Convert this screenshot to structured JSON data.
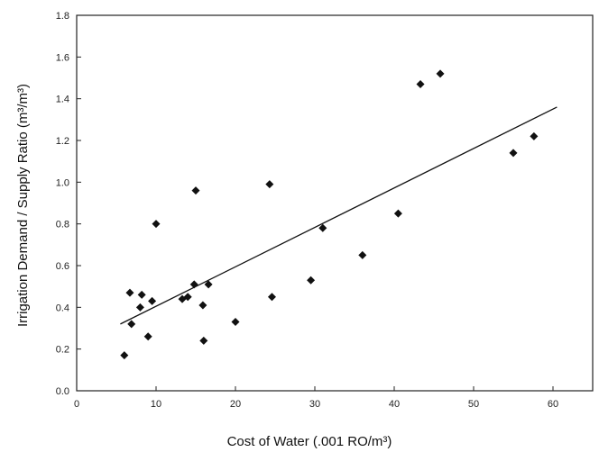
{
  "chart_data": {
    "type": "scatter",
    "title": "",
    "xlabel": "Cost of Water (.001 RO/m³)",
    "ylabel": "Irrigation Demand / Supply Ratio (m³/m³)",
    "xlim": [
      0,
      65
    ],
    "ylim": [
      0,
      1.8
    ],
    "xticks": [
      0,
      10,
      20,
      30,
      40,
      50,
      60
    ],
    "yticks": [
      0.0,
      0.2,
      0.4,
      0.6,
      0.8,
      1.0,
      1.2,
      1.4,
      1.6,
      1.8
    ],
    "xtick_labels": [
      "0",
      "10",
      "20",
      "30",
      "40",
      "50",
      "60"
    ],
    "ytick_labels": [
      "0.0",
      "0.2",
      "0.4",
      "0.6",
      "0.8",
      "1.0",
      "1.2",
      "1.4",
      "1.6",
      "1.8"
    ],
    "grid": false,
    "series": [
      {
        "points": [
          {
            "x": 6.0,
            "y": 0.17
          },
          {
            "x": 6.7,
            "y": 0.47
          },
          {
            "x": 6.9,
            "y": 0.32
          },
          {
            "x": 8.0,
            "y": 0.4
          },
          {
            "x": 8.2,
            "y": 0.46
          },
          {
            "x": 9.0,
            "y": 0.26
          },
          {
            "x": 9.5,
            "y": 0.43
          },
          {
            "x": 10.0,
            "y": 0.8
          },
          {
            "x": 13.3,
            "y": 0.44
          },
          {
            "x": 14.0,
            "y": 0.45
          },
          {
            "x": 14.8,
            "y": 0.51
          },
          {
            "x": 15.0,
            "y": 0.96
          },
          {
            "x": 15.9,
            "y": 0.41
          },
          {
            "x": 16.0,
            "y": 0.24
          },
          {
            "x": 16.6,
            "y": 0.51
          },
          {
            "x": 20.0,
            "y": 0.33
          },
          {
            "x": 24.3,
            "y": 0.99
          },
          {
            "x": 24.6,
            "y": 0.45
          },
          {
            "x": 29.5,
            "y": 0.53
          },
          {
            "x": 31.0,
            "y": 0.78
          },
          {
            "x": 36.0,
            "y": 0.65
          },
          {
            "x": 40.5,
            "y": 0.85
          },
          {
            "x": 43.3,
            "y": 1.47
          },
          {
            "x": 45.8,
            "y": 1.52
          },
          {
            "x": 55.0,
            "y": 1.14
          },
          {
            "x": 57.6,
            "y": 1.22
          }
        ]
      }
    ],
    "trendline": {
      "x": [
        5.5,
        60.5
      ],
      "y": [
        0.32,
        1.36
      ]
    }
  },
  "colors": {
    "marker": "#111111",
    "line": "#111111",
    "axis": "#222222"
  }
}
